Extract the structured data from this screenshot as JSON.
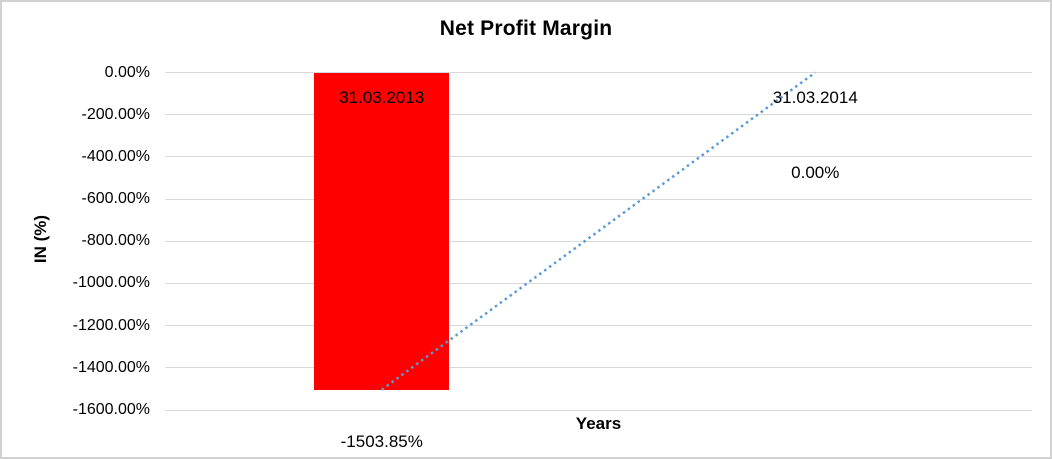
{
  "chart": {
    "title": "Net Profit Margin",
    "y_axis_title": "IN (%)",
    "x_axis_title": "Years",
    "y_ticks": [
      "0.00%",
      "-200.00%",
      "-400.00%",
      "-600.00%",
      "-800.00%",
      "-1000.00%",
      "-1200.00%",
      "-1400.00%",
      "-1600.00%"
    ],
    "labels": {
      "category_2013": "31.03.2013",
      "category_2014": "31.03.2014",
      "value_2013": "-1503.85%",
      "value_2014": "0.00%"
    },
    "colors": {
      "bar": "#FF0000",
      "trendline": "#5B9BD5",
      "gridline": "#D9D9D9",
      "frame_border": "#D2D2D2",
      "text": "#000000"
    }
  },
  "chart_data": {
    "type": "bar",
    "title": "Net Profit Margin",
    "xlabel": "Years",
    "ylabel": "IN (%)",
    "categories": [
      "31.03.2013",
      "31.03.2014"
    ],
    "values": [
      -1503.85,
      0
    ],
    "data_labels": [
      "-1503.85%",
      "0.00%"
    ],
    "ylim": [
      -1600,
      0
    ],
    "y_tick_step": 200,
    "grid": true,
    "legend": false,
    "bar_color": "#FF0000",
    "trendline": {
      "type": "linear",
      "style": "dotted",
      "color": "#5B9BD5",
      "points": [
        [
          0,
          -1503.85
        ],
        [
          1,
          0
        ]
      ]
    }
  }
}
